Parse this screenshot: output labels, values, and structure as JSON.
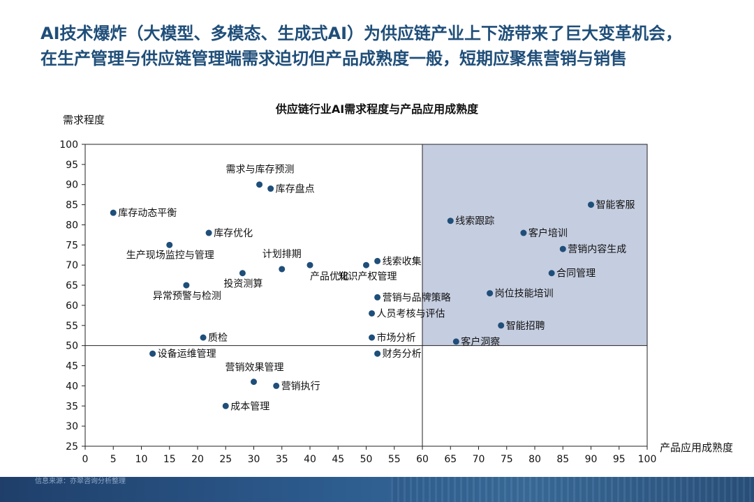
{
  "slide": {
    "title_line1": "AI技术爆炸（大模型、多模态、生成式AI）为供应链产业上下游带来了巨大变革机会，",
    "title_line2": "在生产管理与供应链管理端需求迫切但产品成熟度一般，短期应聚焦营销与销售"
  },
  "footer": {
    "source": "信息来源：亦翠咨询分析整理"
  },
  "colors": {
    "title": "#1f4e79",
    "point": "#1f4e79",
    "highlight_quadrant": "#c5cde0"
  },
  "chart_data": {
    "type": "scatter",
    "title": "供应链行业AI需求程度与产品应用成熟度",
    "xlabel": "产品应用成熟度",
    "ylabel": "需求程度",
    "xlim": [
      0,
      100
    ],
    "ylim": [
      25,
      100
    ],
    "x_ticks": [
      0,
      5,
      10,
      15,
      20,
      25,
      30,
      35,
      40,
      45,
      50,
      55,
      60,
      65,
      70,
      75,
      80,
      85,
      90,
      95,
      100
    ],
    "y_ticks": [
      25,
      30,
      35,
      40,
      45,
      50,
      55,
      60,
      65,
      70,
      75,
      80,
      85,
      90,
      95,
      100
    ],
    "grid": false,
    "divider": {
      "x": 60,
      "y": 50
    },
    "highlight_quadrant": "top-right",
    "points": [
      {
        "label": "需求与库存预测",
        "x": 31,
        "y": 90
      },
      {
        "label": "库存盘点",
        "x": 33,
        "y": 89
      },
      {
        "label": "库存动态平衡",
        "x": 5,
        "y": 83
      },
      {
        "label": "库存优化",
        "x": 22,
        "y": 78
      },
      {
        "label": "生产现场监控与管理",
        "x": 15,
        "y": 75
      },
      {
        "label": "计划排期",
        "x": 35,
        "y": 69
      },
      {
        "label": "产品优化",
        "x": 40,
        "y": 70
      },
      {
        "label": "投资测算",
        "x": 28,
        "y": 68
      },
      {
        "label": "异常预警与检测",
        "x": 18,
        "y": 65
      },
      {
        "label": "知识产权管理",
        "x": 50,
        "y": 70
      },
      {
        "label": "线索收集",
        "x": 52,
        "y": 71
      },
      {
        "label": "营销与品牌策略",
        "x": 52,
        "y": 62
      },
      {
        "label": "人员考核与评估",
        "x": 51,
        "y": 58
      },
      {
        "label": "质检",
        "x": 21,
        "y": 52
      },
      {
        "label": "市场分析",
        "x": 51,
        "y": 52
      },
      {
        "label": "设备运维管理",
        "x": 12,
        "y": 48
      },
      {
        "label": "财务分析",
        "x": 52,
        "y": 48
      },
      {
        "label": "营销效果管理",
        "x": 30,
        "y": 41
      },
      {
        "label": "营销执行",
        "x": 34,
        "y": 40
      },
      {
        "label": "成本管理",
        "x": 25,
        "y": 35
      },
      {
        "label": "智能客服",
        "x": 90,
        "y": 85
      },
      {
        "label": "线索跟踪",
        "x": 65,
        "y": 81
      },
      {
        "label": "客户培训",
        "x": 78,
        "y": 78
      },
      {
        "label": "营销内容生成",
        "x": 85,
        "y": 74
      },
      {
        "label": "合同管理",
        "x": 83,
        "y": 68
      },
      {
        "label": "岗位技能培训",
        "x": 72,
        "y": 63
      },
      {
        "label": "智能招聘",
        "x": 74,
        "y": 55
      },
      {
        "label": "客户洞察",
        "x": 66,
        "y": 51
      }
    ]
  }
}
